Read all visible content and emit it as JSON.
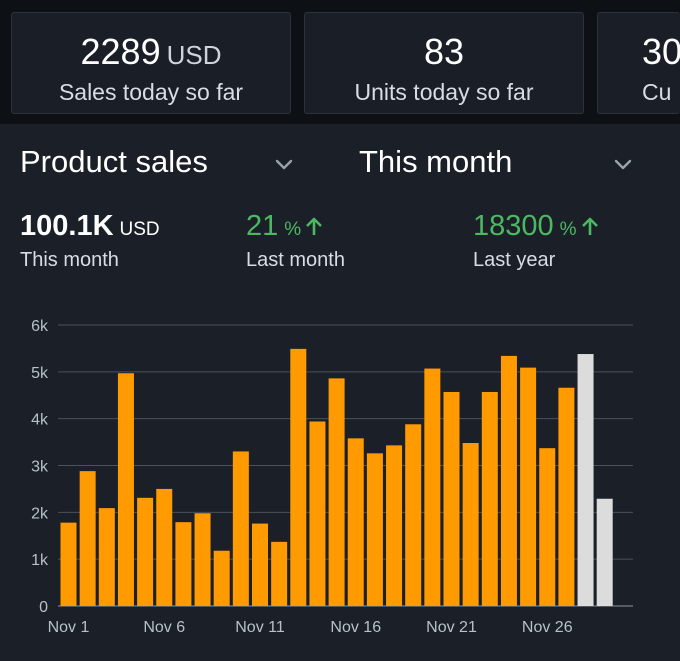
{
  "stats": [
    {
      "value": "2289",
      "unit": "USD",
      "label": "Sales today so far"
    },
    {
      "value": "83",
      "unit": "",
      "label": "Units today so far"
    },
    {
      "value": "30",
      "unit": "",
      "label": "Cu"
    }
  ],
  "filters": {
    "metric": "Product sales",
    "period": "This month"
  },
  "kpis": {
    "total": {
      "value": "100.1K",
      "unit": "USD",
      "label": "This month"
    },
    "last_month": {
      "value": "21",
      "unit": "%",
      "label": "Last month"
    },
    "last_year": {
      "value": "18300",
      "unit": "%",
      "label": "Last year"
    }
  },
  "colors": {
    "bar": "#ff9a00",
    "bar_projected": "#dcdcdc",
    "positive": "#4cb862",
    "panel": "#1b2028"
  },
  "chart_data": {
    "type": "bar",
    "x": [
      1,
      2,
      3,
      4,
      5,
      6,
      7,
      8,
      9,
      10,
      11,
      12,
      13,
      14,
      15,
      16,
      17,
      18,
      19,
      20,
      21,
      22,
      23,
      24,
      25,
      26,
      27,
      28,
      29
    ],
    "values": [
      1780,
      2880,
      2090,
      4970,
      2310,
      2500,
      1790,
      1980,
      1180,
      3300,
      1760,
      1370,
      5490,
      3940,
      4860,
      3580,
      3260,
      3430,
      3880,
      5070,
      4570,
      3480,
      4570,
      5340,
      5090,
      3370,
      4660,
      5380,
      2290
    ],
    "projected": [
      false,
      false,
      false,
      false,
      false,
      false,
      false,
      false,
      false,
      false,
      false,
      false,
      false,
      false,
      false,
      false,
      false,
      false,
      false,
      false,
      false,
      false,
      false,
      false,
      false,
      false,
      false,
      true,
      true
    ],
    "xticks": [
      {
        "x": 1,
        "label": "Nov 1"
      },
      {
        "x": 6,
        "label": "Nov 6"
      },
      {
        "x": 11,
        "label": "Nov 11"
      },
      {
        "x": 16,
        "label": "Nov 16"
      },
      {
        "x": 21,
        "label": "Nov 21"
      },
      {
        "x": 26,
        "label": "Nov 26"
      }
    ],
    "yticks": [
      {
        "value": 0,
        "label": "0"
      },
      {
        "value": 1000,
        "label": "1k"
      },
      {
        "value": 2000,
        "label": "2k"
      },
      {
        "value": 3000,
        "label": "3k"
      },
      {
        "value": 4000,
        "label": "4k"
      },
      {
        "value": 5000,
        "label": "5k"
      },
      {
        "value": 6000,
        "label": "6k"
      }
    ],
    "ylim": [
      0,
      6000
    ],
    "grid": true
  }
}
